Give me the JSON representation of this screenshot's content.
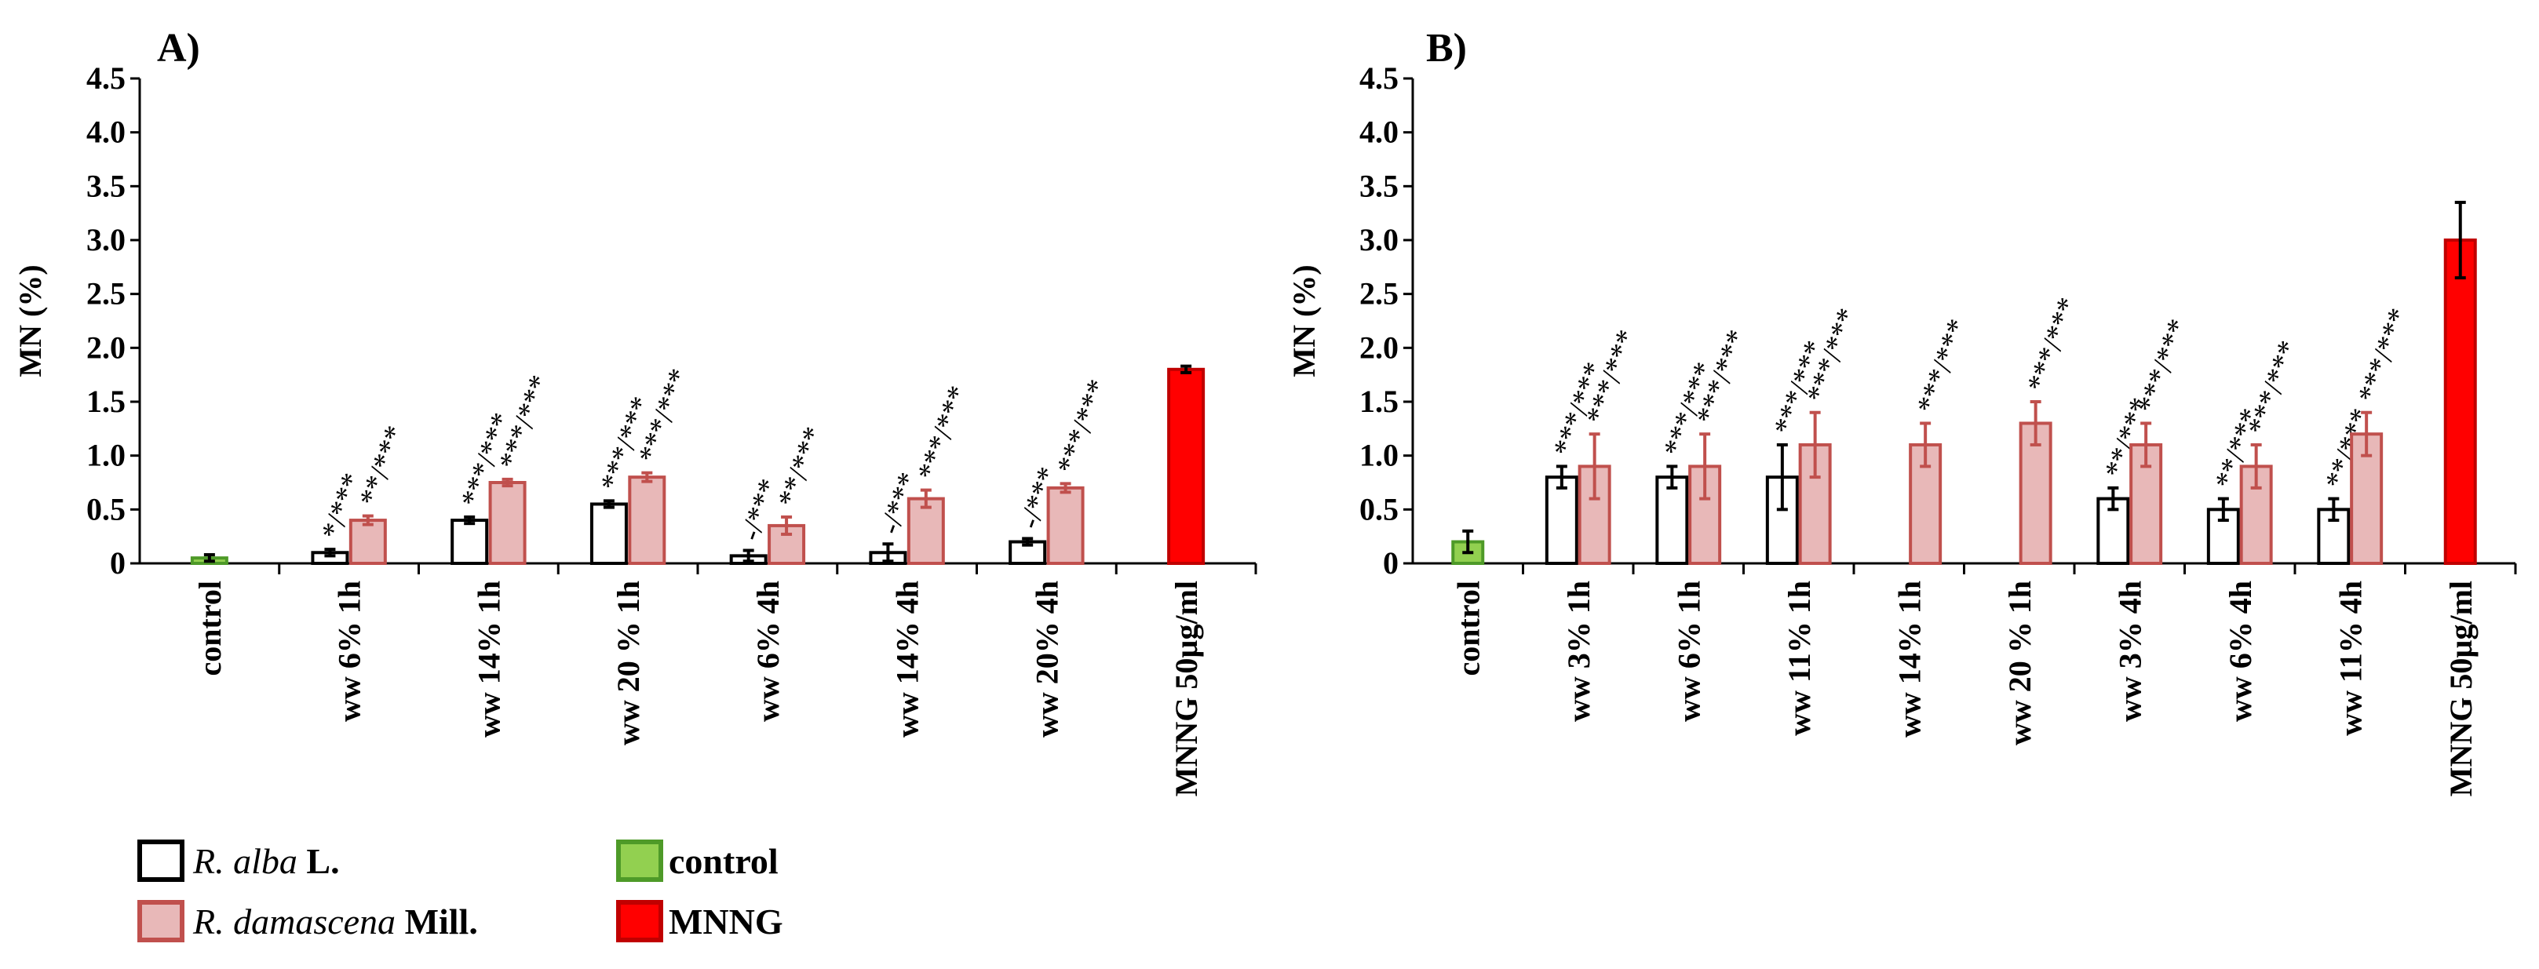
{
  "chart_data": [
    {
      "type": "bar",
      "title": "A)",
      "ylabel": "MN (%)",
      "ylim": [
        0,
        4.5
      ],
      "yticks": [
        "0",
        "0.5",
        "1.0",
        "1.5",
        "2.0",
        "2.5",
        "3.0",
        "3.5",
        "4.0",
        "4.5"
      ],
      "groups": [
        {
          "label": "control",
          "bars": [
            {
              "series": "control",
              "value": 0.05,
              "err": 0.03
            }
          ]
        },
        {
          "label": "ww 6% 1h",
          "bars": [
            {
              "series": "R. alba L.",
              "value": 0.1,
              "err": 0.03,
              "sig": "*/***"
            },
            {
              "series": "R. damascena Mill.",
              "value": 0.4,
              "err": 0.04,
              "sig": "**/***"
            }
          ]
        },
        {
          "label": "ww 14% 1h",
          "bars": [
            {
              "series": "R. alba L.",
              "value": 0.4,
              "err": 0.03,
              "sig": "***/***"
            },
            {
              "series": "R. damascena Mill.",
              "value": 0.75,
              "err": 0.03,
              "sig": "***/***"
            }
          ]
        },
        {
          "label": "ww 20 % 1h",
          "bars": [
            {
              "series": "R. alba L.",
              "value": 0.55,
              "err": 0.03,
              "sig": "***/***"
            },
            {
              "series": "R. damascena Mill.",
              "value": 0.8,
              "err": 0.04,
              "sig": "***/***"
            }
          ]
        },
        {
          "label": "ww 6% 4h",
          "bars": [
            {
              "series": "R. alba L.",
              "value": 0.07,
              "err": 0.05,
              "sig": "-/***"
            },
            {
              "series": "R. damascena Mill.",
              "value": 0.35,
              "err": 0.08,
              "sig": "**/***"
            }
          ]
        },
        {
          "label": "ww 14% 4h",
          "bars": [
            {
              "series": "R. alba L.",
              "value": 0.1,
              "err": 0.08,
              "sig": "-/***"
            },
            {
              "series": "R. damascena Mill.",
              "value": 0.6,
              "err": 0.08,
              "sig": "***/***"
            }
          ]
        },
        {
          "label": "ww 20% 4h",
          "bars": [
            {
              "series": "R. alba L.",
              "value": 0.2,
              "err": 0.03,
              "sig": "-/***"
            },
            {
              "series": "R. damascena Mill.",
              "value": 0.7,
              "err": 0.04,
              "sig": "***/***"
            }
          ]
        },
        {
          "label": "MNNG 50µg/ml",
          "bars": [
            {
              "series": "MNNG",
              "value": 1.8,
              "err": 0.03
            }
          ]
        }
      ]
    },
    {
      "type": "bar",
      "title": "B)",
      "ylabel": "MN (%)",
      "ylim": [
        0,
        4.5
      ],
      "yticks": [
        "0",
        "0.5",
        "1.0",
        "1.5",
        "2.0",
        "2.5",
        "3.0",
        "3.5",
        "4.0",
        "4.5"
      ],
      "groups": [
        {
          "label": "control",
          "bars": [
            {
              "series": "control",
              "value": 0.2,
              "err": 0.1
            }
          ]
        },
        {
          "label": "ww 3% 1h",
          "bars": [
            {
              "series": "R. alba L.",
              "value": 0.8,
              "err": 0.1,
              "sig": "***/***"
            },
            {
              "series": "R. damascena Mill.",
              "value": 0.9,
              "err": 0.3,
              "sig": "***/***"
            }
          ]
        },
        {
          "label": "ww 6% 1h",
          "bars": [
            {
              "series": "R. alba L.",
              "value": 0.8,
              "err": 0.1,
              "sig": "***/***"
            },
            {
              "series": "R. damascena Mill.",
              "value": 0.9,
              "err": 0.3,
              "sig": "***/***"
            }
          ]
        },
        {
          "label": "ww 11% 1h",
          "bars": [
            {
              "series": "R. alba L.",
              "value": 0.8,
              "err": 0.3,
              "sig": "***/***"
            },
            {
              "series": "R. damascena Mill.",
              "value": 1.1,
              "err": 0.3,
              "sig": "***/***"
            }
          ]
        },
        {
          "label": "ww 14% 1h",
          "bars": [
            {
              "series": "R. damascena Mill.",
              "value": 1.1,
              "err": 0.2,
              "sig": "***/***"
            }
          ]
        },
        {
          "label": "ww 20 % 1h",
          "bars": [
            {
              "series": "R. damascena Mill.",
              "value": 1.3,
              "err": 0.2,
              "sig": "***/***"
            }
          ]
        },
        {
          "label": "ww 3% 4h",
          "bars": [
            {
              "series": "R. alba L.",
              "value": 0.6,
              "err": 0.1,
              "sig": "**/***"
            },
            {
              "series": "R. damascena Mill.",
              "value": 1.1,
              "err": 0.2,
              "sig": "***/***"
            }
          ]
        },
        {
          "label": "ww 6% 4h",
          "bars": [
            {
              "series": "R. alba L.",
              "value": 0.5,
              "err": 0.1,
              "sig": "**/***"
            },
            {
              "series": "R. damascena Mill.",
              "value": 0.9,
              "err": 0.2,
              "sig": "***/***"
            }
          ]
        },
        {
          "label": "ww 11% 4h",
          "bars": [
            {
              "series": "R. alba L.",
              "value": 0.5,
              "err": 0.1,
              "sig": "**/***"
            },
            {
              "series": "R. damascena Mill.",
              "value": 1.2,
              "err": 0.2,
              "sig": "***/***"
            }
          ]
        },
        {
          "label": "MNNG 50µg/ml",
          "bars": [
            {
              "series": "MNNG",
              "value": 3.0,
              "err": 0.35
            }
          ]
        }
      ]
    }
  ],
  "legend": {
    "items": [
      {
        "key": "alba",
        "italic": "R. alba",
        "plain": " L."
      },
      {
        "key": "damascena",
        "italic": "R. damascena",
        "plain": " Mill."
      },
      {
        "key": "control",
        "italic": "",
        "plain": "control"
      },
      {
        "key": "mnng",
        "italic": "",
        "plain": "MNNG"
      }
    ]
  },
  "colors": {
    "R. alba L.": {
      "fill": "#ffffff",
      "stroke": "#000000",
      "err": "#000000"
    },
    "R. damascena Mill.": {
      "fill": "#e8b8b8",
      "stroke": "#c0504d",
      "err": "#c0504d"
    },
    "control": {
      "fill": "#92d050",
      "stroke": "#4e9a28",
      "err": "#000000"
    },
    "MNNG": {
      "fill": "#ff0000",
      "stroke": "#c00000",
      "err": "#000000"
    }
  }
}
